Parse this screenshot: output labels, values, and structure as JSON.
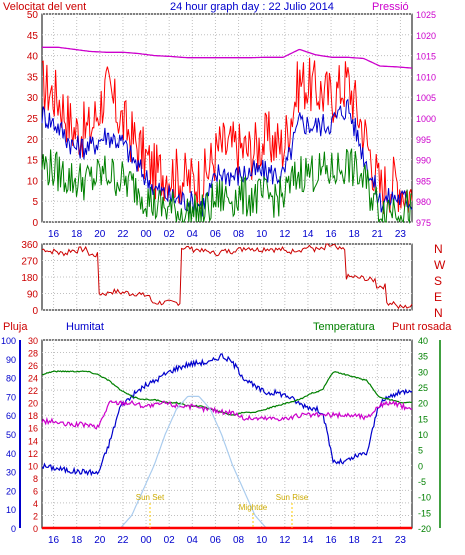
{
  "chart_data": [
    {
      "type": "line",
      "title": "24 hour graph day : 22 Julio 2014",
      "left_axis_label": "Velocitat del vent",
      "right_axis_label": "Pressió",
      "x_ticks": [
        "16",
        "18",
        "20",
        "22",
        "00",
        "02",
        "04",
        "06",
        "08",
        "10",
        "12",
        "14",
        "16",
        "18",
        "21",
        "23"
      ],
      "ylim_left": [
        0,
        50
      ],
      "ylim_right": [
        975,
        1025
      ],
      "y_ticks_left": [
        50,
        45,
        40,
        35,
        30,
        25,
        20,
        15,
        10,
        5,
        0
      ],
      "y_ticks_right": [
        1025,
        1020,
        1015,
        1010,
        1005,
        1000,
        995,
        990,
        985,
        980,
        975
      ],
      "grid": true,
      "series": [
        {
          "color": "#ff0000",
          "axis": "left",
          "values": [
            33,
            30,
            22,
            22,
            32,
            24,
            18,
            12,
            12,
            10,
            10,
            18,
            18,
            17,
            20,
            18,
            34,
            32,
            30,
            34,
            22,
            8,
            10,
            6
          ]
        },
        {
          "color": "#0000cc",
          "axis": "left",
          "values": [
            26,
            23,
            18,
            18,
            21,
            19,
            13,
            8,
            6,
            5,
            4,
            12,
            11,
            12,
            12,
            11,
            24,
            23,
            24,
            28,
            16,
            5,
            6,
            5
          ]
        },
        {
          "color": "#008000",
          "axis": "left",
          "values": [
            14,
            12,
            10,
            10,
            12,
            10,
            8,
            4,
            3,
            2,
            2,
            6,
            6,
            6,
            6,
            6,
            12,
            12,
            12,
            14,
            10,
            3,
            4,
            3
          ]
        },
        {
          "color": "#cc00cc",
          "axis": "right",
          "values": [
            1017,
            1017,
            1016.5,
            1016,
            1015.8,
            1015.8,
            1015.5,
            1015,
            1014.8,
            1014.5,
            1014.5,
            1014.5,
            1014.5,
            1014.5,
            1014.6,
            1014.6,
            1016.5,
            1015.2,
            1014.6,
            1014.6,
            1014.3,
            1012.5,
            1012.3,
            1012
          ]
        }
      ]
    },
    {
      "type": "line",
      "ylim": [
        0,
        360
      ],
      "y_ticks": [
        360,
        270,
        180,
        90,
        0
      ],
      "right_labels": [
        "N",
        "W",
        "S",
        "E",
        "N"
      ],
      "grid": true,
      "series": [
        {
          "color": "#cc0000",
          "values": [
            330,
            320,
            310,
            325,
            330,
            300,
            90,
            100,
            95,
            90,
            80,
            40,
            40,
            40,
            340,
            330,
            320,
            310,
            320,
            330,
            340,
            330,
            335,
            330,
            320,
            330,
            340,
            330,
            350,
            330,
            180,
            175,
            165,
            130,
            40,
            15,
            20
          ]
        }
      ]
    },
    {
      "type": "line",
      "left_axis_label": "Pluja",
      "left2_axis_label": "Humitat",
      "right_axis_label": "Temperatura",
      "right2_axis_label": "Punt rosada",
      "ylim_humidity": [
        0,
        100
      ],
      "ylim_rain": [
        0,
        30
      ],
      "ylim_temp": [
        -20,
        40
      ],
      "y_ticks_humidity": [
        100,
        90,
        80,
        70,
        60,
        50,
        40,
        30,
        20,
        10,
        0
      ],
      "y_ticks_rain": [
        30,
        28,
        26,
        24,
        22,
        20,
        18,
        16,
        14,
        12,
        10,
        8,
        6,
        4,
        2,
        0
      ],
      "y_ticks_temp": [
        40,
        35,
        30,
        25,
        20,
        15,
        10,
        5,
        0,
        -5,
        -10,
        -15,
        -20
      ],
      "x_ticks": [
        "16",
        "18",
        "20",
        "22",
        "00",
        "02",
        "04",
        "06",
        "08",
        "10",
        "12",
        "14",
        "16",
        "18",
        "21",
        "23"
      ],
      "annotations": [
        "Sun Set",
        "Mightde",
        "Sun Rise"
      ],
      "grid": true,
      "series": [
        {
          "color": "#0000cc",
          "axis": "humidity",
          "values": [
            33,
            32,
            31,
            30,
            30,
            29,
            45,
            65,
            70,
            75,
            78,
            82,
            85,
            87,
            88,
            88,
            92,
            88,
            80,
            75,
            72,
            72,
            70,
            66,
            64,
            62,
            35,
            35,
            38,
            40,
            65,
            70,
            72,
            74
          ]
        },
        {
          "color": "#008000",
          "axis": "temp",
          "values": [
            29,
            30,
            30,
            30,
            30,
            29,
            27,
            24,
            22,
            21,
            21,
            20,
            20,
            19,
            19,
            18,
            17,
            16,
            17,
            17,
            18,
            19,
            20,
            21,
            23,
            24,
            30,
            29,
            28,
            27,
            22,
            21,
            20,
            20
          ]
        },
        {
          "color": "#cc00cc",
          "axis": "temp",
          "values": [
            14,
            14,
            13,
            13,
            13,
            12,
            20,
            20,
            20,
            19,
            19,
            20,
            19,
            19,
            18,
            18,
            17,
            17,
            15,
            15,
            15,
            15,
            15,
            16,
            16,
            16,
            16,
            16,
            16,
            15,
            19,
            20,
            19,
            18
          ]
        },
        {
          "color": "#aaccee",
          "axis": "rain",
          "values": [
            0,
            0,
            0,
            0,
            0,
            0,
            0,
            0,
            2,
            6,
            10,
            15,
            19,
            21,
            21,
            19,
            15,
            10,
            6,
            2,
            0,
            0,
            0,
            0,
            0,
            0,
            0,
            0,
            0,
            0,
            0,
            0,
            0,
            0
          ]
        },
        {
          "color": "#ff0000",
          "axis": "rain",
          "values": [
            0,
            0,
            0,
            0,
            0,
            0,
            0,
            0,
            0,
            0,
            0,
            0,
            0,
            0,
            0,
            0,
            0,
            0,
            0,
            0,
            0,
            0,
            0,
            0,
            0,
            0,
            0,
            0,
            0,
            0,
            0,
            0,
            0,
            0
          ]
        }
      ]
    }
  ]
}
